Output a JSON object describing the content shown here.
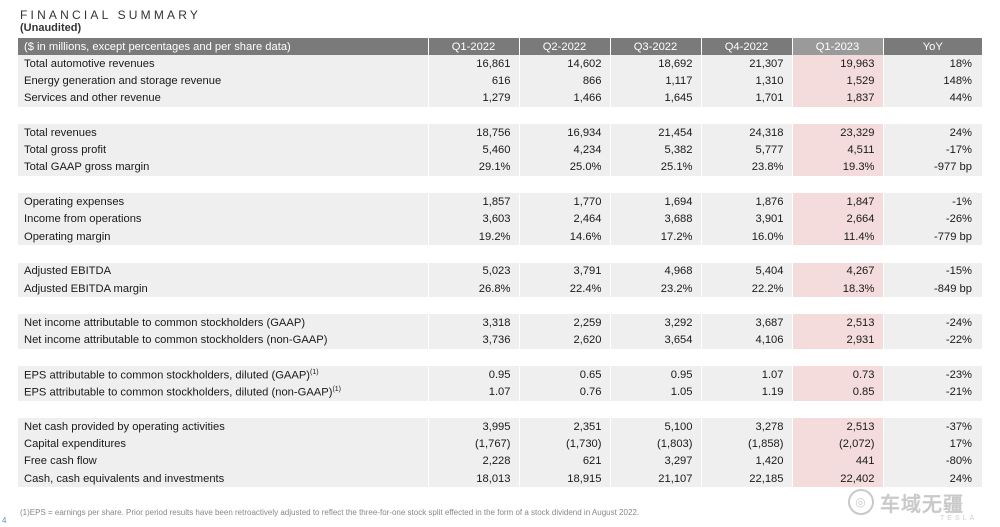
{
  "title": "FINANCIAL SUMMARY",
  "subtitle": "(Unaudited)",
  "table": {
    "headers": [
      "($ in millions, except percentages and per share data)",
      "Q1-2022",
      "Q2-2022",
      "Q3-2022",
      "Q4-2022",
      "Q1-2023",
      "YoY"
    ],
    "highlight_color": "#f4dcdc",
    "header_color": "#7a7a7a",
    "row_color": "#efefef",
    "groups": [
      [
        {
          "label": "Total automotive revenues",
          "values": [
            "16,861",
            "14,602",
            "18,692",
            "21,307",
            "19,963",
            "18%"
          ]
        },
        {
          "label": "Energy generation and storage revenue",
          "values": [
            "616",
            "866",
            "1,117",
            "1,310",
            "1,529",
            "148%"
          ]
        },
        {
          "label": "Services and other revenue",
          "values": [
            "1,279",
            "1,466",
            "1,645",
            "1,701",
            "1,837",
            "44%"
          ]
        }
      ],
      [
        {
          "label": "Total revenues",
          "values": [
            "18,756",
            "16,934",
            "21,454",
            "24,318",
            "23,329",
            "24%"
          ]
        },
        {
          "label": "Total gross profit",
          "values": [
            "5,460",
            "4,234",
            "5,382",
            "5,777",
            "4,511",
            "-17%"
          ]
        },
        {
          "label": "Total GAAP gross margin",
          "values": [
            "29.1%",
            "25.0%",
            "25.1%",
            "23.8%",
            "19.3%",
            "-977 bp"
          ]
        }
      ],
      [
        {
          "label": "Operating expenses",
          "values": [
            "1,857",
            "1,770",
            "1,694",
            "1,876",
            "1,847",
            "-1%"
          ]
        },
        {
          "label": "Income from operations",
          "values": [
            "3,603",
            "2,464",
            "3,688",
            "3,901",
            "2,664",
            "-26%"
          ]
        },
        {
          "label": "Operating margin",
          "values": [
            "19.2%",
            "14.6%",
            "17.2%",
            "16.0%",
            "11.4%",
            "-779 bp"
          ]
        }
      ],
      [
        {
          "label": "Adjusted EBITDA",
          "values": [
            "5,023",
            "3,791",
            "4,968",
            "5,404",
            "4,267",
            "-15%"
          ]
        },
        {
          "label": "Adjusted EBITDA margin",
          "values": [
            "26.8%",
            "22.4%",
            "23.2%",
            "22.2%",
            "18.3%",
            "-849 bp"
          ]
        }
      ],
      [
        {
          "label": "Net income attributable to common stockholders (GAAP)",
          "values": [
            "3,318",
            "2,259",
            "3,292",
            "3,687",
            "2,513",
            "-24%"
          ]
        },
        {
          "label": "Net income attributable to common stockholders (non-GAAP)",
          "values": [
            "3,736",
            "2,620",
            "3,654",
            "4,106",
            "2,931",
            "-22%"
          ]
        }
      ],
      [
        {
          "label": "EPS attributable to common stockholders, diluted (GAAP)",
          "sup": "(1)",
          "values": [
            "0.95",
            "0.65",
            "0.95",
            "1.07",
            "0.73",
            "-23%"
          ]
        },
        {
          "label": "EPS attributable to common stockholders, diluted (non-GAAP)",
          "sup": "(1)",
          "values": [
            "1.07",
            "0.76",
            "1.05",
            "1.19",
            "0.85",
            "-21%"
          ]
        }
      ],
      [
        {
          "label": "Net cash provided by operating activities",
          "values": [
            "3,995",
            "2,351",
            "5,100",
            "3,278",
            "2,513",
            "-37%"
          ]
        },
        {
          "label": "Capital expenditures",
          "values": [
            "(1,767)",
            "(1,730)",
            "(1,803)",
            "(1,858)",
            "(2,072)",
            "17%"
          ]
        },
        {
          "label": "Free cash flow",
          "values": [
            "2,228",
            "621",
            "3,297",
            "1,420",
            "441",
            "-80%"
          ]
        },
        {
          "label": "Cash, cash equivalents and investments",
          "values": [
            "18,013",
            "18,915",
            "21,107",
            "22,185",
            "22,402",
            "24%"
          ]
        }
      ]
    ]
  },
  "footnote": "(1)EPS = earnings per share. Prior period results have been retroactively adjusted to reflect the three-for-one stock split effected in the form of a stock dividend in August 2022.",
  "page_number": "4",
  "watermark": "车域无疆",
  "brandmark": "TESLA"
}
